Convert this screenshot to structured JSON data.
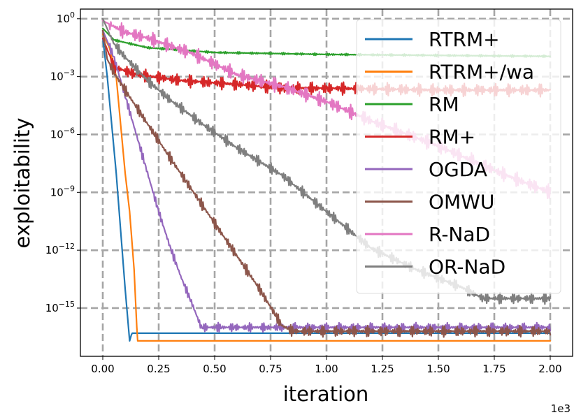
{
  "chart_data": {
    "type": "line",
    "title": "",
    "xlabel": "iteration",
    "ylabel": "exploitability",
    "x_offset_label": "1e3",
    "xscale": "linear",
    "yscale": "log",
    "xlim": [
      -0.1,
      2.1
    ],
    "ylim_log10": [
      -17.5,
      0.5
    ],
    "x_ticks": [
      0.0,
      0.25,
      0.5,
      0.75,
      1.0,
      1.25,
      1.5,
      1.75,
      2.0
    ],
    "x_tick_labels": [
      "0.00",
      "0.25",
      "0.50",
      "0.75",
      "1.00",
      "1.25",
      "1.50",
      "1.75",
      "2.00"
    ],
    "y_ticks_log10": [
      0,
      -3,
      -6,
      -9,
      -12,
      -15
    ],
    "y_tick_labels": [
      {
        "base": "10",
        "exp": "0"
      },
      {
        "base": "10",
        "exp": "−3"
      },
      {
        "base": "10",
        "exp": "−6"
      },
      {
        "base": "10",
        "exp": "−9"
      },
      {
        "base": "10",
        "exp": "−12"
      },
      {
        "base": "10",
        "exp": "−15"
      }
    ],
    "grid": true,
    "legend_position": "upper-right",
    "series": [
      {
        "name": "RTRM+",
        "color": "#1f77b4",
        "points": [
          [
            0.0,
            -1.0
          ],
          [
            0.02,
            -3.0
          ],
          [
            0.04,
            -5.5
          ],
          [
            0.06,
            -8.0
          ],
          [
            0.08,
            -11.0
          ],
          [
            0.1,
            -14.0
          ],
          [
            0.12,
            -16.7
          ],
          [
            0.13,
            -16.3
          ],
          [
            2.0,
            -16.3
          ]
        ]
      },
      {
        "name": "RTRM+/wa",
        "color": "#ff7f0e",
        "points": [
          [
            0.0,
            -0.8
          ],
          [
            0.03,
            -1.5
          ],
          [
            0.06,
            -3.0
          ],
          [
            0.08,
            -5.5
          ],
          [
            0.1,
            -8.0
          ],
          [
            0.12,
            -10.0
          ],
          [
            0.14,
            -13.0
          ],
          [
            0.15,
            -15.5
          ],
          [
            0.155,
            -16.7
          ],
          [
            2.0,
            -16.7
          ]
        ]
      },
      {
        "name": "RM",
        "color": "#2ca02c",
        "noise": 0.06,
        "points": [
          [
            0.0,
            -0.5
          ],
          [
            0.05,
            -1.1
          ],
          [
            0.2,
            -1.5
          ],
          [
            0.5,
            -1.75
          ],
          [
            1.0,
            -1.85
          ],
          [
            1.5,
            -1.9
          ],
          [
            2.0,
            -1.95
          ]
        ]
      },
      {
        "name": "RM+",
        "color": "#d62728",
        "noise": 0.35,
        "points": [
          [
            0.0,
            -1.0
          ],
          [
            0.05,
            -2.5
          ],
          [
            0.15,
            -2.9
          ],
          [
            0.35,
            -3.2
          ],
          [
            0.6,
            -3.4
          ],
          [
            0.8,
            -3.6
          ],
          [
            1.0,
            -3.6
          ],
          [
            1.5,
            -3.7
          ],
          [
            2.0,
            -3.7
          ]
        ]
      },
      {
        "name": "OGDA",
        "color": "#9467bd",
        "noise": 0.25,
        "points": [
          [
            0.0,
            -0.6
          ],
          [
            0.05,
            -2.0
          ],
          [
            0.1,
            -4.0
          ],
          [
            0.15,
            -6.0
          ],
          [
            0.2,
            -8.0
          ],
          [
            0.25,
            -10.0
          ],
          [
            0.3,
            -11.8
          ],
          [
            0.35,
            -13.4
          ],
          [
            0.4,
            -14.8
          ],
          [
            0.44,
            -16.0
          ],
          [
            2.0,
            -16.0
          ]
        ]
      },
      {
        "name": "OMWU",
        "color": "#8c564b",
        "noise": 0.3,
        "points": [
          [
            0.0,
            -0.6
          ],
          [
            0.02,
            -2.1
          ],
          [
            0.05,
            -2.8
          ],
          [
            0.1,
            -3.7
          ],
          [
            0.3,
            -7.2
          ],
          [
            0.5,
            -10.6
          ],
          [
            0.7,
            -14.0
          ],
          [
            0.8,
            -15.9
          ],
          [
            0.85,
            -16.2
          ],
          [
            2.0,
            -16.2
          ]
        ]
      },
      {
        "name": "R-NaD",
        "color": "#e377c2",
        "noise": 0.4,
        "points": [
          [
            0.0,
            -0.1
          ],
          [
            0.1,
            -0.7
          ],
          [
            0.2,
            -1.0
          ],
          [
            0.4,
            -1.8
          ],
          [
            0.6,
            -2.9
          ],
          [
            0.8,
            -3.5
          ],
          [
            1.0,
            -4.3
          ],
          [
            1.2,
            -5.3
          ],
          [
            1.5,
            -6.6
          ],
          [
            1.8,
            -8.1
          ],
          [
            2.0,
            -9.0
          ]
        ]
      },
      {
        "name": "OR-NaD",
        "color": "#7f7f7f",
        "noise": 0.3,
        "points": [
          [
            0.0,
            0.0
          ],
          [
            0.05,
            -1.3
          ],
          [
            0.1,
            -2.0
          ],
          [
            0.2,
            -3.2
          ],
          [
            0.3,
            -4.2
          ],
          [
            0.45,
            -5.5
          ],
          [
            0.6,
            -6.7
          ],
          [
            0.8,
            -8.1
          ],
          [
            1.0,
            -10.0
          ],
          [
            1.2,
            -11.9
          ],
          [
            1.4,
            -13.0
          ],
          [
            1.6,
            -13.9
          ],
          [
            1.7,
            -14.5
          ],
          [
            2.0,
            -14.5
          ]
        ]
      }
    ]
  }
}
